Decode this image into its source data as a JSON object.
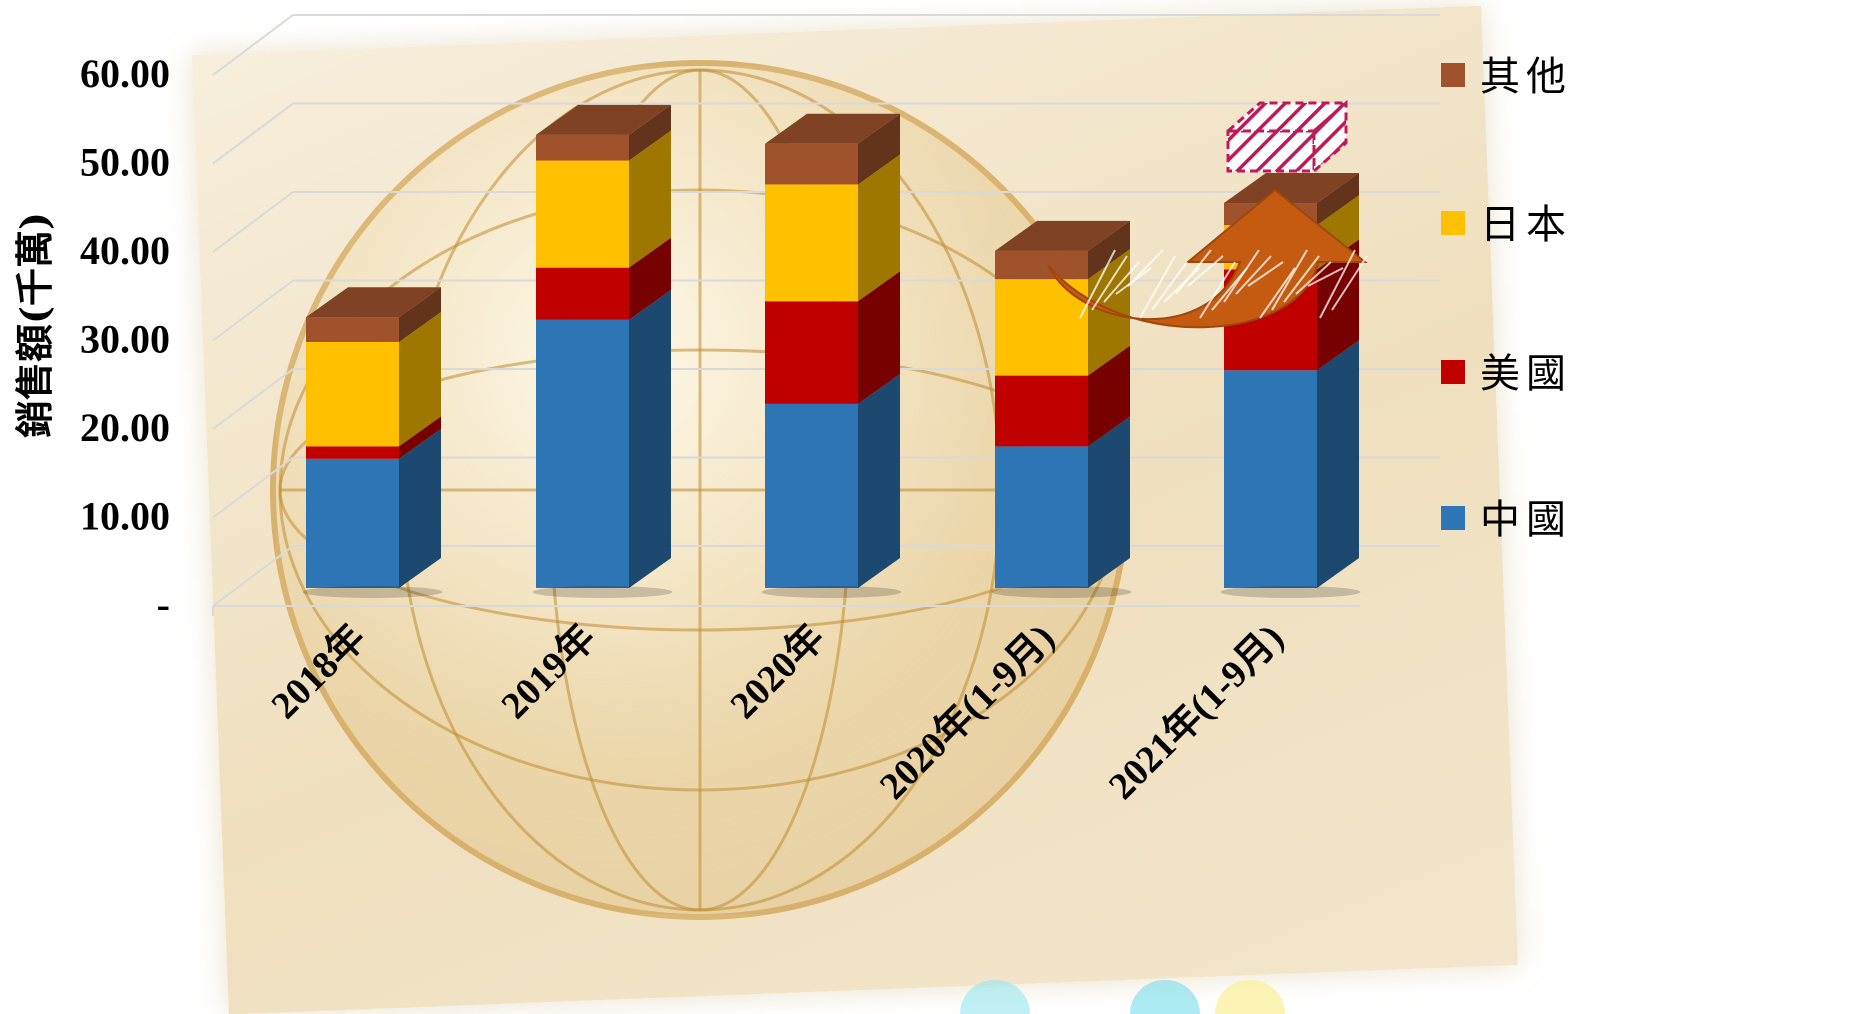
{
  "chart_data": {
    "type": "bar",
    "stacked": true,
    "ylabel": "銷售額(千萬)",
    "ylim": [
      0,
      60
    ],
    "yticks": [
      "-",
      "10.00",
      "20.00",
      "30.00",
      "40.00",
      "50.00",
      "60.00"
    ],
    "categories": [
      "2018年",
      "2019年",
      "2020年",
      "2020年(1-9月)",
      "2021年(1-9月)"
    ],
    "series": [
      {
        "name": "中國",
        "values": [
          14.6,
          30.3,
          20.8,
          16.0,
          24.6
        ],
        "color": "#2e75b6"
      },
      {
        "name": "美國",
        "values": [
          1.4,
          5.9,
          11.6,
          8.0,
          11.4
        ],
        "color": "#c00000"
      },
      {
        "name": "日本",
        "values": [
          11.8,
          12.1,
          13.2,
          10.9,
          5.0
        ],
        "color": "#ffc000"
      },
      {
        "name": "其他",
        "values": [
          2.8,
          2.9,
          4.6,
          3.2,
          2.5
        ],
        "color": "#a0522d"
      }
    ],
    "legend": "right",
    "grid": true,
    "annotations": [
      "orange curved arrow from 2020年(1-9月) to 2021年(1-9月)",
      "hatched projection box on top of 2021年(1-9月)"
    ]
  }
}
